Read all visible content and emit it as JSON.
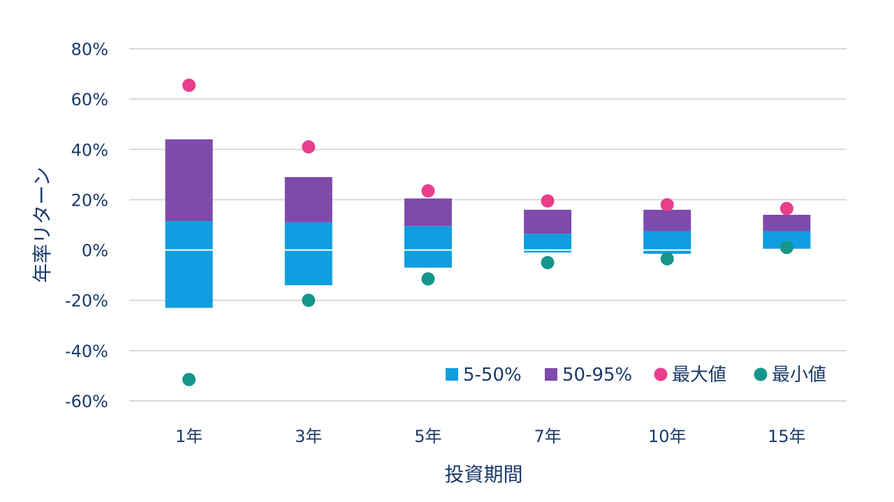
{
  "chart_data": {
    "type": "bar",
    "title": "",
    "xlabel": "投資期間",
    "ylabel": "年率リターン",
    "ylim": [
      -60,
      80
    ],
    "yticks": [
      80,
      60,
      40,
      20,
      0,
      -20,
      -40,
      -60
    ],
    "ytick_labels": [
      "80%",
      "60%",
      "40%",
      "20%",
      "0%",
      "-20%",
      "-40%",
      "-60%"
    ],
    "grid": true,
    "legend_position": "bottom-right",
    "categories": [
      "1年",
      "3年",
      "5年",
      "7年",
      "10年",
      "15年"
    ],
    "series": [
      {
        "name": "5-50%",
        "kind": "floating-bar",
        "color": "#0f9ee0",
        "low": [
          -23,
          -14,
          -7,
          -1,
          -1.5,
          0.5
        ],
        "high": [
          11.5,
          11,
          9.5,
          6.5,
          7.5,
          7.5
        ]
      },
      {
        "name": "50-95%",
        "kind": "floating-bar",
        "color": "#7f4aac",
        "low": [
          11.5,
          11,
          9.5,
          6.5,
          7.5,
          7.5
        ],
        "high": [
          44,
          29,
          20.5,
          16,
          16,
          14
        ]
      },
      {
        "name": "最大値",
        "kind": "marker",
        "color": "#e83e8c",
        "values": [
          65.5,
          41,
          23.5,
          19.5,
          18,
          16.5
        ]
      },
      {
        "name": "最小値",
        "kind": "marker",
        "color": "#14968c",
        "values": [
          -51.5,
          -20,
          -11.5,
          -5,
          -3.5,
          1
        ]
      }
    ]
  }
}
